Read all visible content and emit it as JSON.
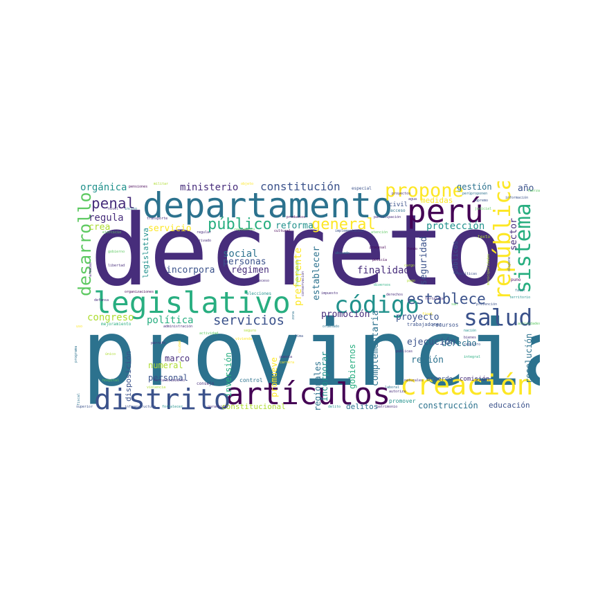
{
  "words": {
    "decreto": "decreto",
    "provincia": "provincia",
    "departamento": "departamento",
    "legislativo": "legislativo",
    "articulos": "artículos",
    "distrito": "distrito",
    "creacion": "creación",
    "codigo": "código",
    "peru": "perú",
    "republica": "república",
    "sistema": "sistema",
    "salud": "salud",
    "propone": "propone",
    "publico": "público",
    "general": "general",
    "establece": "establece",
    "servicios": "servicios",
    "constitucion": "constitución",
    "desarrollo": "desarrollo",
    "penal": "penal",
    "organica": "orgánica",
    "ministerio": "ministerio",
    "gestion": "gestión",
    "ano": "año",
    "regula": "regula",
    "crea": "crea",
    "servicio": "servicio",
    "reforma": "reforma",
    "proteccion": "protección",
    "sector": "sector",
    "social": "social",
    "personas": "personas",
    "regimen": "régimen",
    "incorpora": "incorpora",
    "finalidad": "finalidad",
    "seguridad": "seguridad",
    "establecer": "establecer",
    "preferente": "preferente",
    "politica": "política",
    "congreso": "congreso",
    "promocion": "promoción",
    "proyecto": "proyecto",
    "complementaria": "complementaria",
    "derecho": "derecho",
    "ejecucion": "ejecución",
    "region": "región",
    "resolucion": "resolución",
    "marco": "marco",
    "numeral": "numeral",
    "personal": "personal",
    "disposicion": "disposición",
    "inversion": "inversión",
    "promueve": "promueve",
    "incorporar": "incorporar",
    "regionales": "regionales",
    "gobiernos": "gobiernos",
    "construccion": "construcción",
    "educacion": "educación",
    "delitos": "delitos",
    "constitucional": "constitucional",
    "acuerdo": "acuerdo",
    "comision": "comisión",
    "promover": "promover",
    "control": "control",
    "legislativa": "legislativa",
    "recursos": "recursos",
    "trabajadores": "trabajadores",
    "publicos": "públicos",
    "medidas": "medidas",
    "civil": "civil",
    "pensiones": "pensiones",
    "militar": "militar",
    "objeto": "objeto",
    "especial": "especial",
    "proyectos": "proyectos",
    "acceso": "acceso",
    "agua": "agua",
    "participacion": "participación",
    "productos": "productos",
    "implementacion": "implementación",
    "atencion": "atención",
    "procesal": "procesal",
    "policia": "policía",
    "ubicado": "ubicado",
    "cargo": "cargo",
    "pago": "pago",
    "fondo": "fondo",
    "politicas": "políticas",
    "judicial": "judicial",
    "informacion": "información",
    "supremo": "supremo",
    "peruproponen": "perúproponen",
    "fuerzas": "fuerzas",
    "texto": "texto",
    "dispone": "dispone",
    "municipalidades": "municipalidades",
    "puno": "puno",
    "favor": "favor",
    "territorio": "territorio",
    "prevencion": "prevención",
    "actividades": "actividades",
    "nivel": "nivel",
    "inciso": "inciso",
    "transporte": "transporte",
    "ejercicio": "ejercicio",
    "armadas": "armadas",
    "regular": "regular",
    "privado": "privado",
    "reglamento": "reglamento",
    "cultural": "cultural",
    "gobierno": "gobierno",
    "libertad": "libertad",
    "proceso": "proceso",
    "diversos": "diversos",
    "investigacion": "investigación",
    "conservacion": "conservación",
    "organizaciones": "organizaciones",
    "elecciones": "elecciones",
    "defensa": "defensa",
    "derechos": "derechos",
    "impuesto": "impuesto",
    "fortalece": "fortalece",
    "mejoramiento": "mejoramiento",
    "uso": "uso",
    "administracion": "administración",
    "actividad": "actividad",
    "zona": "zona",
    "ordenado": "ordenado",
    "seguro": "seguro",
    "parrafo": "párrafo",
    "ciudad": "ciudad",
    "deroga": "deroga",
    "programa": "programa",
    "unico": "único",
    "hospital": "hospital",
    "fortalecimiento": "fortalecimiento",
    "consejo": "consejo",
    "fiscal": "fiscal",
    "violencia": "violencia",
    "superior": "superior",
    "infraestructura": "infraestructura",
    "fortalecer": "fortalecer",
    "garantizar": "garantizar",
    "delito": "delito",
    "patrimonio": "patrimonio",
    "naturales": "naturales",
    "autoriza": "autoriza",
    "laboral": "laboral",
    "publicas": "públicas",
    "puesta": "puesta",
    "carrera": "carrera",
    "lima": "lima",
    "nacion": "nación",
    "bienes": "bienes",
    "registro": "registro",
    "integral": "integral",
    "final": "final",
    "san": "san",
    "vivienda": "vivienda"
  }
}
